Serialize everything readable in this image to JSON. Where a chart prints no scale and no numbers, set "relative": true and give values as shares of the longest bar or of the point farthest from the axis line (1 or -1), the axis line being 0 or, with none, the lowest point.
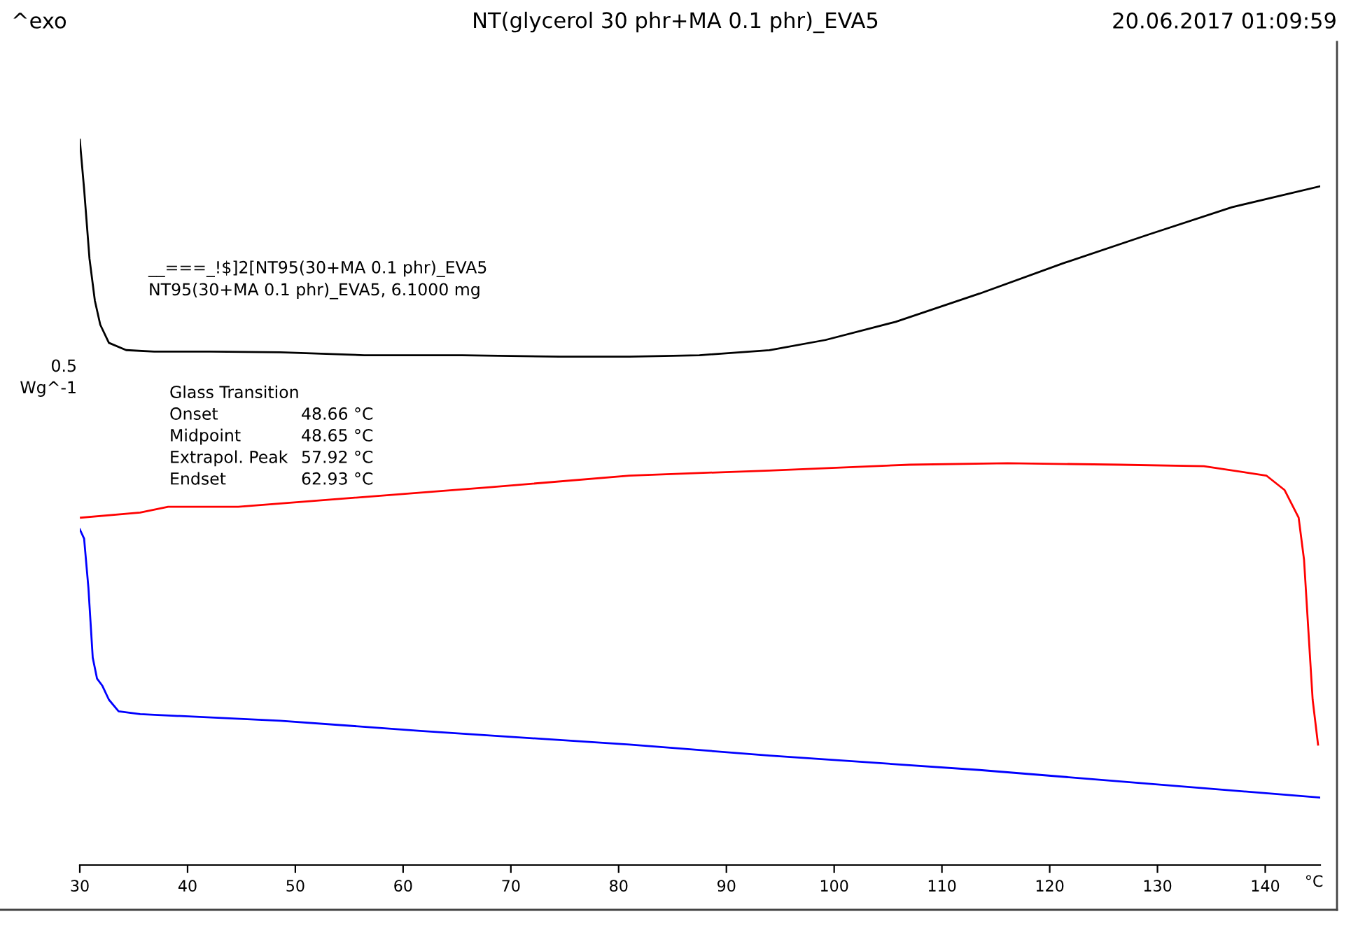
{
  "chart_data": {
    "type": "line",
    "title": "NT(glycerol 30 phr+MA 0.1 phr)_EVA5",
    "relative": true,
    "xlabel": "°C",
    "xlim": [
      30,
      145.1
    ],
    "xticks": [
      30,
      40,
      50,
      60,
      70,
      80,
      90,
      100,
      110,
      120,
      130,
      140
    ],
    "grid": false,
    "legend": false,
    "marker": "none",
    "line_style": "solid",
    "annotations": [
      "^exo",
      "20.06.2017 01:09:59",
      "0.5\nWg^-1",
      "__===_!$]2[NT95(30+MA 0.1 phr)_EVA5\nNT95(30+MA 0.1 phr)_EVA5, 6.1000 mg",
      "Glass Transition\nOnset\nMidpoint\nExtrapol. Peak\nEndset",
      "\n48.66 °C\n48.65 °C\n57.92 °C\n62.93 °C"
    ],
    "series": [
      {
        "color": "#000000",
        "x": [
          30.0,
          30.4,
          30.9,
          31.4,
          31.9,
          32.7,
          34.3,
          36.9,
          42.1,
          48.6,
          56.4,
          65.5,
          74.5,
          81.0,
          87.5,
          94.0,
          99.2,
          105.7,
          113.5,
          121.3,
          129.1,
          136.9,
          145.1
        ],
        "values": [
          1.0,
          0.932,
          0.836,
          0.778,
          0.745,
          0.72,
          0.71,
          0.708,
          0.708,
          0.707,
          0.703,
          0.703,
          0.701,
          0.701,
          0.703,
          0.71,
          0.724,
          0.749,
          0.788,
          0.83,
          0.869,
          0.907,
          0.936
        ]
      },
      {
        "color": "#ff0000",
        "x": [
          30.1,
          35.6,
          38.2,
          44.7,
          55.1,
          68.1,
          81.0,
          94.0,
          107.0,
          116.1,
          126.5,
          134.3,
          140.1,
          141.8,
          143.1,
          143.6,
          144.0,
          144.4,
          144.9
        ],
        "values": [
          0.479,
          0.486,
          0.494,
          0.494,
          0.506,
          0.521,
          0.537,
          0.544,
          0.552,
          0.554,
          0.552,
          0.55,
          0.537,
          0.517,
          0.479,
          0.421,
          0.324,
          0.228,
          0.166
        ]
      },
      {
        "color": "#0000ff",
        "x": [
          30.0,
          30.4,
          30.8,
          31.2,
          31.6,
          32.1,
          32.7,
          33.6,
          35.6,
          48.6,
          61.6,
          81.0,
          94.0,
          113.5,
          145.1
        ],
        "values": [
          0.463,
          0.45,
          0.382,
          0.286,
          0.257,
          0.247,
          0.228,
          0.212,
          0.208,
          0.199,
          0.185,
          0.166,
          0.151,
          0.131,
          0.093
        ]
      }
    ]
  }
}
